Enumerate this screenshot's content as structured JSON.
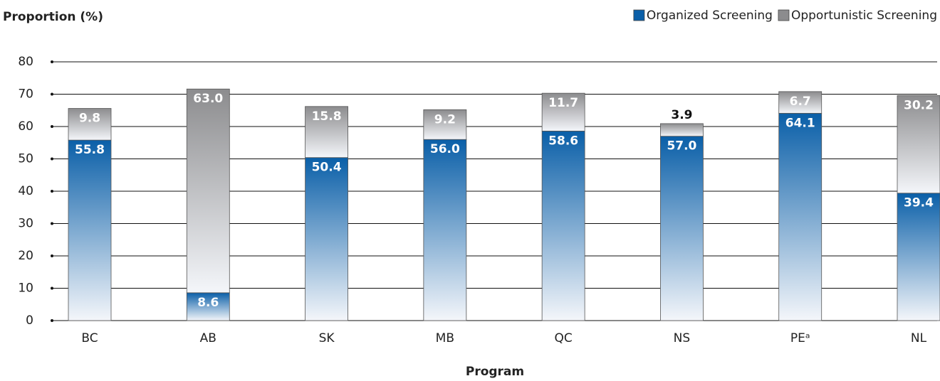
{
  "chart_data": {
    "type": "stacked-bar",
    "y_label": "Proportion (%)",
    "x_label": "Program",
    "categories": [
      "BC",
      "AB",
      "SK",
      "MB",
      "QC",
      "NS",
      "PEᵃ",
      "NL"
    ],
    "series": [
      {
        "name": "Organized Screening",
        "color": "#0a5fa8",
        "values": [
          55.8,
          8.6,
          50.4,
          56.0,
          58.6,
          57.0,
          64.1,
          39.4
        ],
        "value_labels": [
          "55.8",
          "8.6",
          "50.4",
          "56.0",
          "58.6",
          "57.0",
          "64.1",
          "39.4"
        ]
      },
      {
        "name": "Opportunistic Screening",
        "color": "#8c8c8e",
        "values": [
          9.8,
          63.0,
          15.8,
          9.2,
          11.7,
          3.9,
          6.7,
          30.2
        ],
        "value_labels": [
          "9.8",
          "63.0",
          "15.8",
          "9.2",
          "11.7",
          "3.9",
          "6.7",
          "30.2"
        ]
      }
    ],
    "ylim": [
      0,
      80
    ],
    "yticks": [
      0,
      10,
      20,
      30,
      40,
      50,
      60,
      70,
      80
    ],
    "grid": true,
    "legend": "top-right"
  }
}
